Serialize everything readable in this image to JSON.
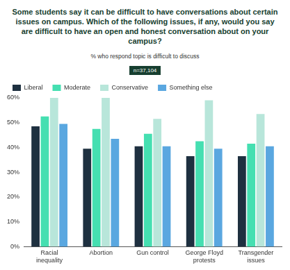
{
  "chart_data": {
    "type": "bar",
    "title": "Some students say it can be difficult to have conversations about certain issues on campus. Which of the following issues, if any, would you say are difficult to have an open and honest conversation about on your campus?",
    "subtitle": "% who respond topic is difficult to discuss",
    "annotation": "n=37,104",
    "categories": [
      "Racial inequality",
      "Abortion",
      "Gun control",
      "George Floyd protests",
      "Transgender issues"
    ],
    "series": [
      {
        "name": "Liberal",
        "color": "#1e3040",
        "values": [
          48.5,
          39.5,
          40.5,
          36.5,
          36.5
        ]
      },
      {
        "name": "Moderate",
        "color": "#45dfb1",
        "values": [
          52.5,
          47.5,
          45.5,
          42.5,
          41.5
        ]
      },
      {
        "name": "Conservative",
        "color": "#b8e6da",
        "values": [
          60,
          60,
          51.5,
          59,
          53.5
        ]
      },
      {
        "name": "Something else",
        "color": "#5aa7e0",
        "values": [
          49.5,
          43.5,
          40.5,
          39.5,
          40.5
        ]
      }
    ],
    "ylim": [
      0,
      60
    ],
    "yticks": [
      {
        "value": 0,
        "label": "0%"
      },
      {
        "value": 10,
        "label": "10%"
      },
      {
        "value": 20,
        "label": "20%"
      },
      {
        "value": 30,
        "label": "30%"
      },
      {
        "value": 40,
        "label": "40%"
      },
      {
        "value": 50,
        "label": "50%"
      },
      {
        "value": 60,
        "label": "60%"
      }
    ],
    "grid": false,
    "legend": "top"
  }
}
